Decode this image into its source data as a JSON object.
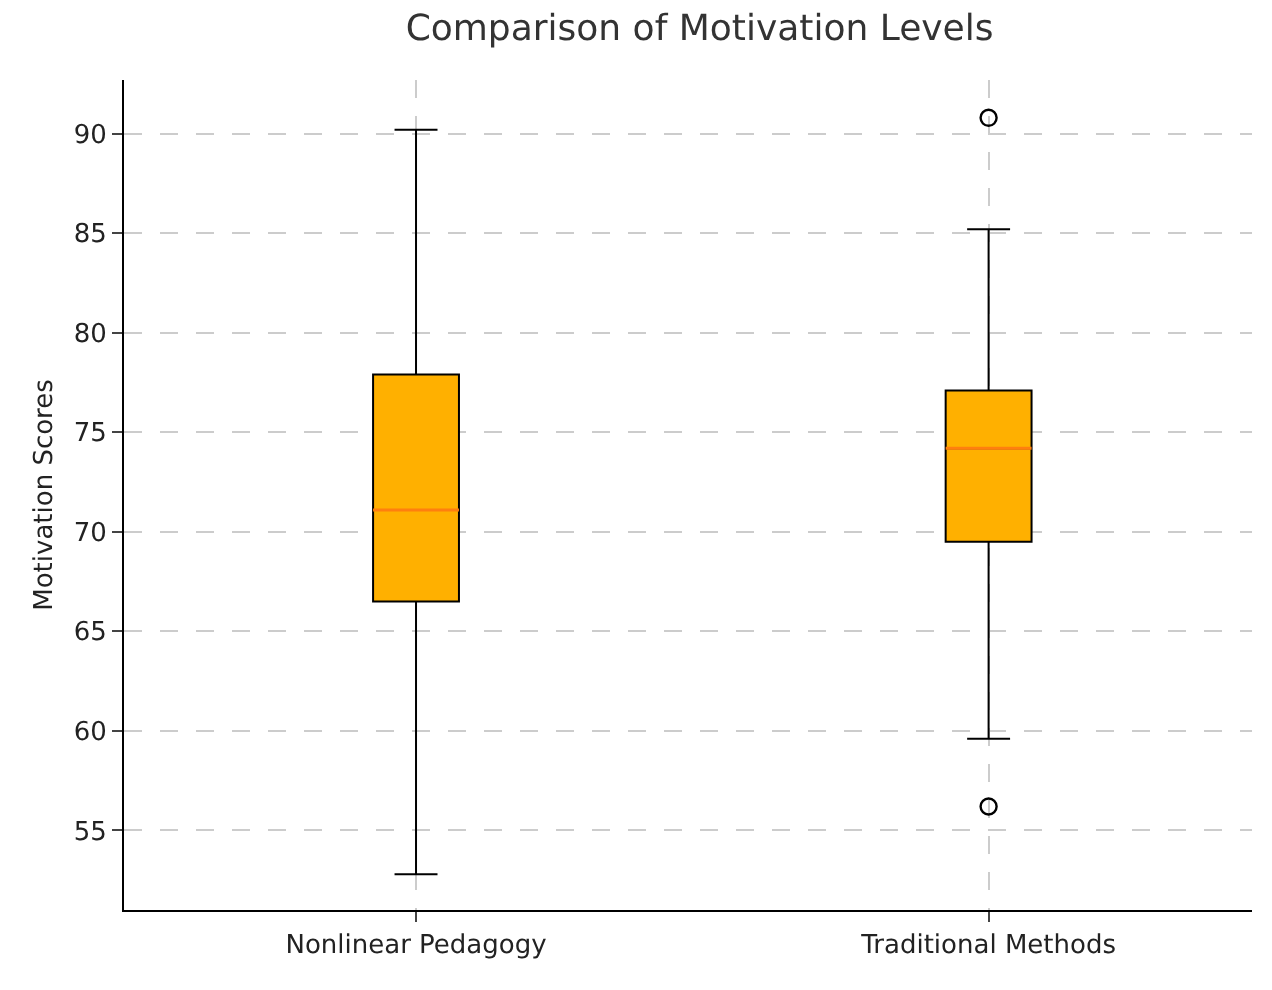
{
  "chart_data": {
    "type": "box",
    "title": "Comparison of Motivation Levels",
    "ylabel": "Motivation Scores",
    "categories": [
      "Nonlinear Pedagogy",
      "Traditional Methods"
    ],
    "series": [
      {
        "color": "#ffb000",
        "boxes": [
          {
            "low": 52.8,
            "q1": 66.5,
            "median": 71.1,
            "q3": 77.9,
            "high": 90.2
          },
          {
            "low": 59.6,
            "q1": 69.5,
            "median": 74.2,
            "q3": 77.1,
            "high": 85.2,
            "outliers": [
              90.8,
              56.2
            ]
          }
        ]
      }
    ],
    "ylim": [
      51,
      92.7
    ],
    "yticks": [
      55,
      60,
      65,
      70,
      75,
      80,
      85,
      90
    ],
    "grid": true,
    "marker": "circle"
  }
}
